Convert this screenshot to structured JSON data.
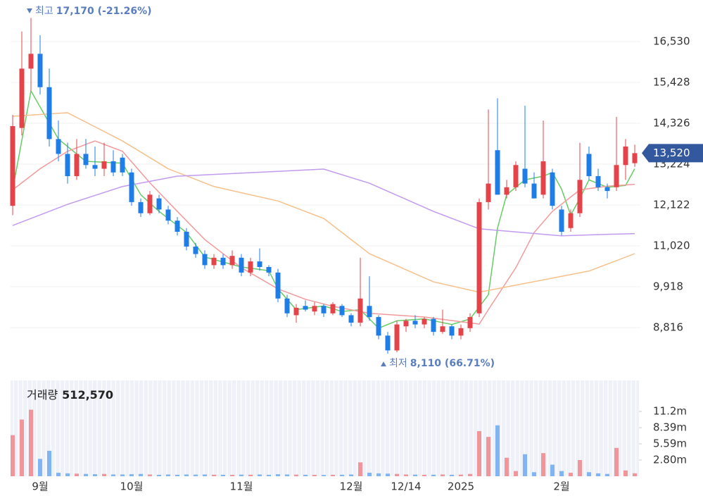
{
  "chart_data": {
    "type": "candlestick",
    "categories": [
      null,
      null,
      null,
      "9월",
      null,
      null,
      null,
      null,
      null,
      null,
      null,
      null,
      null,
      "10월",
      null,
      null,
      null,
      null,
      null,
      null,
      null,
      null,
      null,
      null,
      null,
      "11월",
      null,
      null,
      null,
      null,
      null,
      null,
      null,
      null,
      null,
      null,
      null,
      "12월",
      null,
      null,
      null,
      null,
      null,
      "12/14",
      null,
      null,
      null,
      null,
      null,
      "2025",
      null,
      null,
      null,
      null,
      null,
      null,
      null,
      null,
      null,
      null,
      "2월",
      null,
      null,
      null,
      null,
      null,
      null,
      null,
      null
    ],
    "open": [
      12100,
      14200,
      15800,
      16200,
      15300,
      13900,
      13500,
      12900,
      13500,
      13200,
      13100,
      13300,
      13400,
      13000,
      12200,
      11900,
      12300,
      12000,
      11700,
      11400,
      11000,
      10800,
      10500,
      10700,
      10500,
      10700,
      10300,
      10600,
      10450,
      10300,
      9600,
      9150,
      9400,
      9250,
      9400,
      9200,
      9400,
      9150,
      8950,
      9400,
      9100,
      8600,
      8200,
      8850,
      9000,
      8900,
      9050,
      8700,
      8850,
      8600,
      8800,
      9200,
      12200,
      13600,
      12400,
      12600,
      13100,
      12700,
      12400,
      13000,
      12000,
      11500,
      11900,
      13500,
      12900,
      12600,
      12600,
      13200,
      13250
    ],
    "high": [
      14550,
      16800,
      17170,
      16700,
      15800,
      14400,
      13800,
      13900,
      13900,
      13700,
      13800,
      13600,
      13500,
      13100,
      12300,
      12500,
      12400,
      12100,
      11800,
      11500,
      11100,
      10900,
      10800,
      10800,
      10900,
      10800,
      10700,
      10950,
      10500,
      10400,
      9700,
      9450,
      9550,
      9500,
      9450,
      9500,
      9450,
      9200,
      10700,
      10200,
      9150,
      8700,
      9000,
      9050,
      9150,
      9100,
      9100,
      9300,
      8900,
      8900,
      9200,
      12300,
      14700,
      15000,
      12800,
      13300,
      14800,
      13000,
      14400,
      13100,
      12100,
      12000,
      13800,
      13700,
      13100,
      12700,
      14500,
      13900,
      13750
    ],
    "low": [
      11850,
      14000,
      15200,
      15100,
      13700,
      13300,
      12700,
      12800,
      13100,
      12900,
      12900,
      12900,
      12900,
      12100,
      11800,
      11850,
      11900,
      11600,
      11300,
      10900,
      10700,
      10400,
      10400,
      10400,
      10400,
      10200,
      10200,
      10350,
      10200,
      9500,
      9100,
      8950,
      9250,
      9150,
      9100,
      9150,
      9100,
      8850,
      8850,
      9000,
      8500,
      8110,
      8150,
      8700,
      8800,
      8800,
      8600,
      8650,
      8500,
      8500,
      8700,
      9100,
      12000,
      12400,
      12300,
      12500,
      12600,
      12300,
      12300,
      12000,
      11300,
      11400,
      11800,
      12800,
      12500,
      12300,
      12500,
      12800,
      13150
    ],
    "close": [
      14250,
      15800,
      16200,
      15300,
      13900,
      13500,
      12900,
      13500,
      13200,
      13100,
      13300,
      13000,
      13000,
      12200,
      11900,
      12400,
      12000,
      11700,
      11400,
      11000,
      10800,
      10500,
      10700,
      10500,
      10750,
      10300,
      10600,
      10450,
      10300,
      9600,
      9200,
      9350,
      9300,
      9400,
      9200,
      9450,
      9150,
      8950,
      9600,
      9100,
      8600,
      8200,
      8900,
      9000,
      8900,
      9050,
      8700,
      8850,
      8600,
      8800,
      9100,
      12200,
      12700,
      12400,
      12600,
      13200,
      12700,
      12300,
      13300,
      12100,
      11400,
      11900,
      12800,
      12900,
      12600,
      12500,
      13200,
      13700,
      13520
    ],
    "up_color": "#e5434a",
    "down_color": "#1f7de8",
    "ylim": [
      7771,
      17461
    ],
    "yticks": [
      {
        "value": 8816,
        "label": "8,816"
      },
      {
        "value": 9918,
        "label": "9,918"
      },
      {
        "value": 11020,
        "label": "11,020"
      },
      {
        "value": 12122,
        "label": "12,122"
      },
      {
        "value": 13224,
        "label": "13,224"
      },
      {
        "value": 14326,
        "label": "14,326"
      },
      {
        "value": 15428,
        "label": "15,428"
      },
      {
        "value": 16530,
        "label": "16,530"
      }
    ],
    "grid": true,
    "ma": [
      {
        "color": "#66cc66",
        "x": [
          0,
          2,
          5,
          8,
          12,
          14,
          16,
          19,
          21,
          25,
          28,
          29,
          31,
          34,
          36,
          38,
          40,
          42,
          45,
          48,
          50,
          52,
          53,
          54,
          56,
          58,
          59,
          60,
          61,
          62,
          63,
          65,
          67,
          68
        ],
        "values": [
          12530,
          15200,
          13900,
          13300,
          13250,
          12400,
          11950,
          11380,
          10720,
          10450,
          10350,
          9860,
          9300,
          9400,
          9250,
          9300,
          8800,
          9000,
          9050,
          8900,
          9050,
          9700,
          11500,
          12400,
          12800,
          12900,
          13000,
          12550,
          11850,
          12300,
          12800,
          12600,
          12650,
          13100
        ]
      },
      {
        "color": "#f29a9a",
        "x": [
          0,
          3,
          6,
          9,
          12,
          15,
          18,
          21,
          25,
          29,
          32,
          35,
          39,
          45,
          51,
          52,
          55,
          57,
          59,
          62,
          65,
          68
        ],
        "values": [
          12530,
          13100,
          13570,
          13850,
          13570,
          12720,
          11950,
          11190,
          10430,
          9860,
          9580,
          9390,
          9200,
          9100,
          8910,
          9300,
          10430,
          11380,
          11950,
          12530,
          12630,
          12680
        ]
      },
      {
        "color": "#f7c08a",
        "x": [
          0,
          6,
          12,
          17,
          22,
          29,
          34,
          39,
          46,
          51,
          55,
          59,
          63,
          68
        ],
        "values": [
          14516,
          14610,
          13850,
          13100,
          12620,
          12230,
          11760,
          10810,
          10050,
          9770,
          9960,
          10150,
          10340,
          10810
        ]
      },
      {
        "color": "#c29af0",
        "x": [
          0,
          6,
          12,
          18,
          29,
          34,
          39,
          46,
          51,
          60,
          65,
          68
        ],
        "values": [
          11570,
          12140,
          12620,
          12900,
          13030,
          13090,
          12710,
          11950,
          11480,
          11290,
          11330,
          11350
        ]
      }
    ],
    "high_mark": {
      "label": "최고",
      "value": 17170,
      "text": "17,170 (-21.26%)"
    },
    "low_mark": {
      "label": "최저",
      "value": 8110,
      "text": "8,110 (66.71%)"
    },
    "last_price": {
      "value": 13520,
      "label": "13,520"
    },
    "volume": {
      "title": "거래량",
      "last_label": "512,570",
      "up_color": "#f0969a",
      "down_color": "#80b4f2",
      "ylim": [
        0,
        16560000
      ],
      "yticks": [
        {
          "value": 2800000,
          "label": "2.80m"
        },
        {
          "value": 5590000,
          "label": "5.59m"
        },
        {
          "value": 8390000,
          "label": "8.39m"
        },
        {
          "value": 11200000,
          "label": "11.2m"
        }
      ],
      "values": [
        7100000,
        9800000,
        11500000,
        3000000,
        4400000,
        600000,
        500000,
        450000,
        400000,
        350000,
        400000,
        300000,
        300000,
        350000,
        400000,
        300000,
        250000,
        300000,
        250000,
        300000,
        280000,
        300000,
        260000,
        250000,
        240000,
        280000,
        260000,
        300000,
        250000,
        350000,
        300000,
        280000,
        250000,
        240000,
        220000,
        250000,
        260000,
        300000,
        2400000,
        600000,
        500000,
        450000,
        400000,
        300000,
        280000,
        250000,
        260000,
        300000,
        250000,
        280000,
        400000,
        7800000,
        6800000,
        8800000,
        3200000,
        900000,
        3800000,
        700000,
        4000000,
        2000000,
        900000,
        600000,
        2800000,
        700000,
        500000,
        400000,
        4900000,
        1000000,
        512570
      ]
    }
  }
}
